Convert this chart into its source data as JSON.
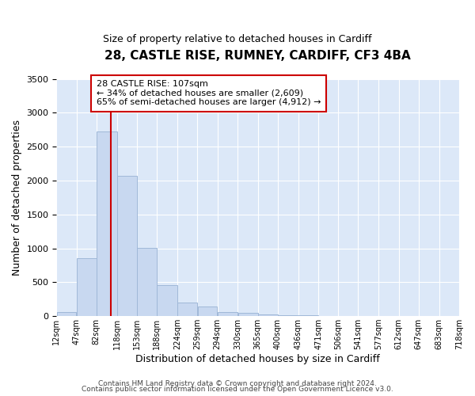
{
  "title": "28, CASTLE RISE, RUMNEY, CARDIFF, CF3 4BA",
  "subtitle": "Size of property relative to detached houses in Cardiff",
  "xlabel": "Distribution of detached houses by size in Cardiff",
  "ylabel": "Number of detached properties",
  "footer_line1": "Contains HM Land Registry data © Crown copyright and database right 2024.",
  "footer_line2": "Contains public sector information licensed under the Open Government Licence v3.0.",
  "annotation_title": "28 CASTLE RISE: 107sqm",
  "annotation_line2": "← 34% of detached houses are smaller (2,609)",
  "annotation_line3": "65% of semi-detached houses are larger (4,912) →",
  "bar_color": "#c8d8f0",
  "bar_edge_color": "#a0b8d8",
  "vline_x": 107,
  "vline_color": "#cc0000",
  "bin_edges": [
    12,
    47,
    82,
    118,
    153,
    188,
    224,
    259,
    294,
    330,
    365,
    400,
    436,
    471,
    506,
    541,
    577,
    612,
    647,
    683,
    718
  ],
  "bar_heights": [
    55,
    850,
    2720,
    2070,
    1010,
    455,
    205,
    145,
    65,
    45,
    25,
    15,
    10,
    0,
    0,
    0,
    0,
    0,
    0,
    0
  ],
  "ylim": [
    0,
    3500
  ],
  "yticks": [
    0,
    500,
    1000,
    1500,
    2000,
    2500,
    3000,
    3500
  ],
  "tick_labels": [
    "12sqm",
    "47sqm",
    "82sqm",
    "118sqm",
    "153sqm",
    "188sqm",
    "224sqm",
    "259sqm",
    "294sqm",
    "330sqm",
    "365sqm",
    "400sqm",
    "436sqm",
    "471sqm",
    "506sqm",
    "541sqm",
    "577sqm",
    "612sqm",
    "647sqm",
    "683sqm",
    "718sqm"
  ],
  "annotation_box_edgecolor": "#cc0000",
  "annotation_box_facecolor": "#ffffff",
  "background_color": "#ffffff",
  "plot_bg_color": "#dce8f8"
}
